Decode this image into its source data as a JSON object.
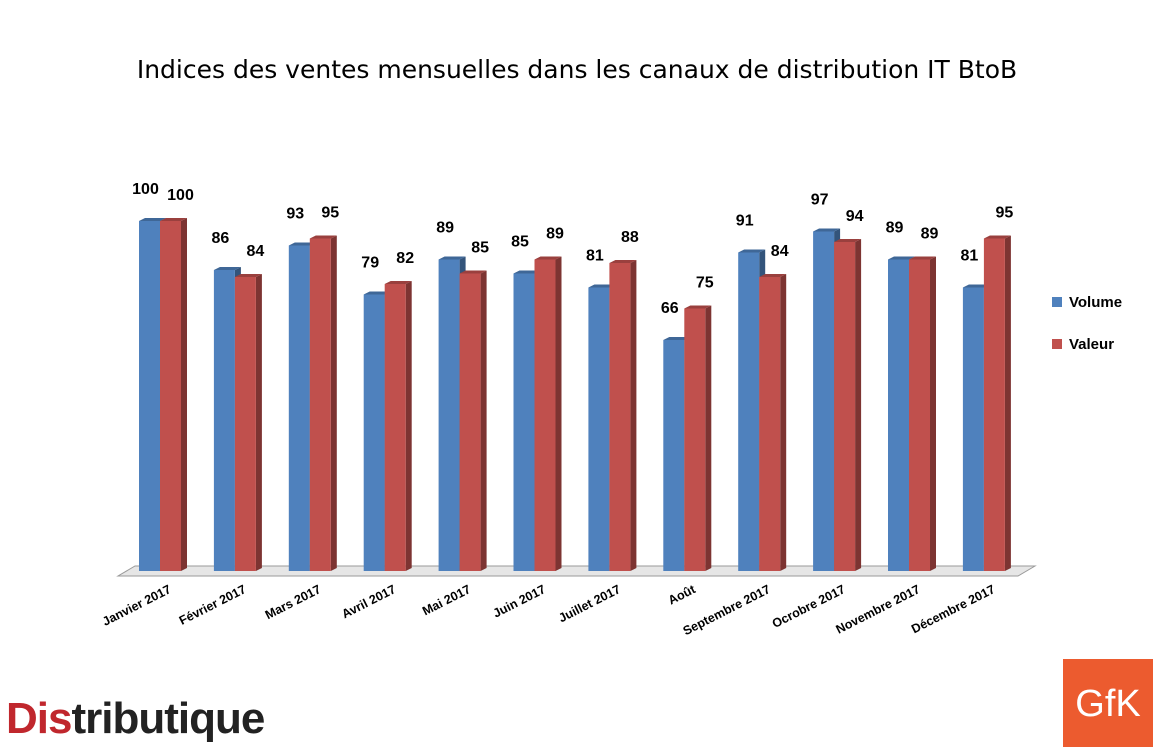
{
  "chart_data": {
    "type": "bar",
    "title": "Indices des ventes mensuelles dans les canaux de distribution IT BtoB",
    "categories": [
      "Janvier 2017",
      "Février 2017",
      "Mars 2017",
      "Avril 2017",
      "Mai 2017",
      "Juin 2017",
      "Juillet 2017",
      "Août",
      "Septembre 2017",
      "Ocrobre 2017",
      "Novembre 2017",
      "Décembre 2017"
    ],
    "series": [
      {
        "name": "Volume",
        "color": "#4f81bd",
        "values": [
          100,
          86,
          93,
          79,
          89,
          85,
          81,
          66,
          91,
          97,
          89,
          81
        ]
      },
      {
        "name": "Valeur",
        "color": "#c0504d",
        "values": [
          100,
          84,
          95,
          82,
          85,
          89,
          88,
          75,
          84,
          94,
          89,
          95
        ]
      }
    ],
    "ylim": [
      0,
      100
    ],
    "grid": false,
    "legend_position": "right",
    "data_labels": true
  },
  "logos": {
    "distributique": {
      "prefix": "Dis",
      "rest": "tributique",
      "prefix_color": "#c0272d",
      "rest_color": "#222222"
    },
    "gfk": {
      "text": "GfK",
      "color": "#e8512a"
    }
  }
}
